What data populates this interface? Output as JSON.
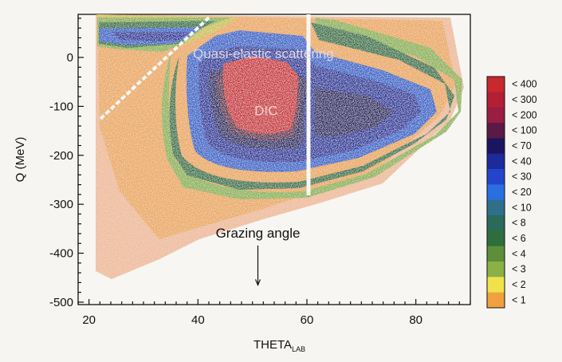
{
  "chart_data": {
    "type": "heatmap",
    "title": "",
    "xlabel": "THETA",
    "xlabel_subscript": "LAB",
    "ylabel": "Q (MeV)",
    "xlim": [
      18,
      90
    ],
    "ylim": [
      -505,
      88
    ],
    "x_ticks": [
      20,
      40,
      60,
      80
    ],
    "y_ticks": [
      0,
      -100,
      -200,
      -300,
      -400,
      -500
    ],
    "grid": false,
    "annotations": [
      {
        "text": "Quasi-elastic scattering",
        "x": 52,
        "y": -2,
        "color": "#d8d8e8"
      },
      {
        "text": "DIC",
        "x": 52.5,
        "y": -118,
        "color": "#f0d0d0"
      },
      {
        "text": "Grazing angle",
        "x": 51,
        "y": -368,
        "color": "#111111",
        "arrow_to": [
          51,
          -465
        ]
      }
    ],
    "colorbar": {
      "placement": "right",
      "levels": [
        {
          "label": "< 400",
          "color": "#c8282e"
        },
        {
          "label": "< 300",
          "color": "#b31f34"
        },
        {
          "label": "< 200",
          "color": "#9a1d42"
        },
        {
          "label": "< 100",
          "color": "#5a1a45"
        },
        {
          "label": "< 70",
          "color": "#1c1460"
        },
        {
          "label": "< 40",
          "color": "#1d2a9a"
        },
        {
          "label": "< 30",
          "color": "#2444cc"
        },
        {
          "label": "< 20",
          "color": "#2a6ee0"
        },
        {
          "label": "< 10",
          "color": "#2f6f8a"
        },
        {
          "label": "< 8",
          "color": "#2a6a5a"
        },
        {
          "label": "< 6",
          "color": "#2f6e3c"
        },
        {
          "label": "< 4",
          "color": "#5d8f3a"
        },
        {
          "label": "< 3",
          "color": "#8ab048"
        },
        {
          "label": "< 2",
          "color": "#f0e24a"
        },
        {
          "label": "< 1",
          "color": "#f0a040"
        }
      ]
    }
  }
}
